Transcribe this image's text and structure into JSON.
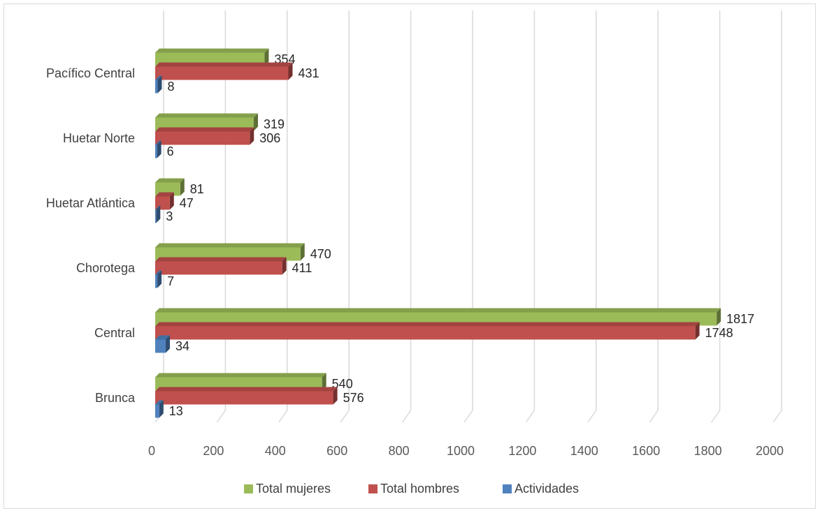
{
  "chart_data": {
    "type": "bar",
    "orientation": "horizontal",
    "three_d": true,
    "categories": [
      "Brunca",
      "Central",
      "Chorotega",
      "Huetar Atlántica",
      "Huetar Norte",
      "Pacífico Central"
    ],
    "series": [
      {
        "name": "Total mujeres",
        "color": "#9BBB59",
        "values": [
          540,
          1817,
          470,
          81,
          319,
          354
        ]
      },
      {
        "name": "Total hombres",
        "color": "#C0504D",
        "values": [
          576,
          1748,
          411,
          47,
          306,
          431
        ]
      },
      {
        "name": "Actividades",
        "color": "#4F81BD",
        "values": [
          13,
          34,
          7,
          3,
          6,
          8
        ]
      }
    ],
    "x_ticks": [
      "0",
      "200",
      "400",
      "600",
      "800",
      "1000",
      "1200",
      "1400",
      "1600",
      "1800",
      "2000"
    ],
    "xlim": [
      0,
      2000
    ],
    "grid": true,
    "legend_position": "bottom",
    "title": "",
    "xlabel": "",
    "ylabel": ""
  }
}
